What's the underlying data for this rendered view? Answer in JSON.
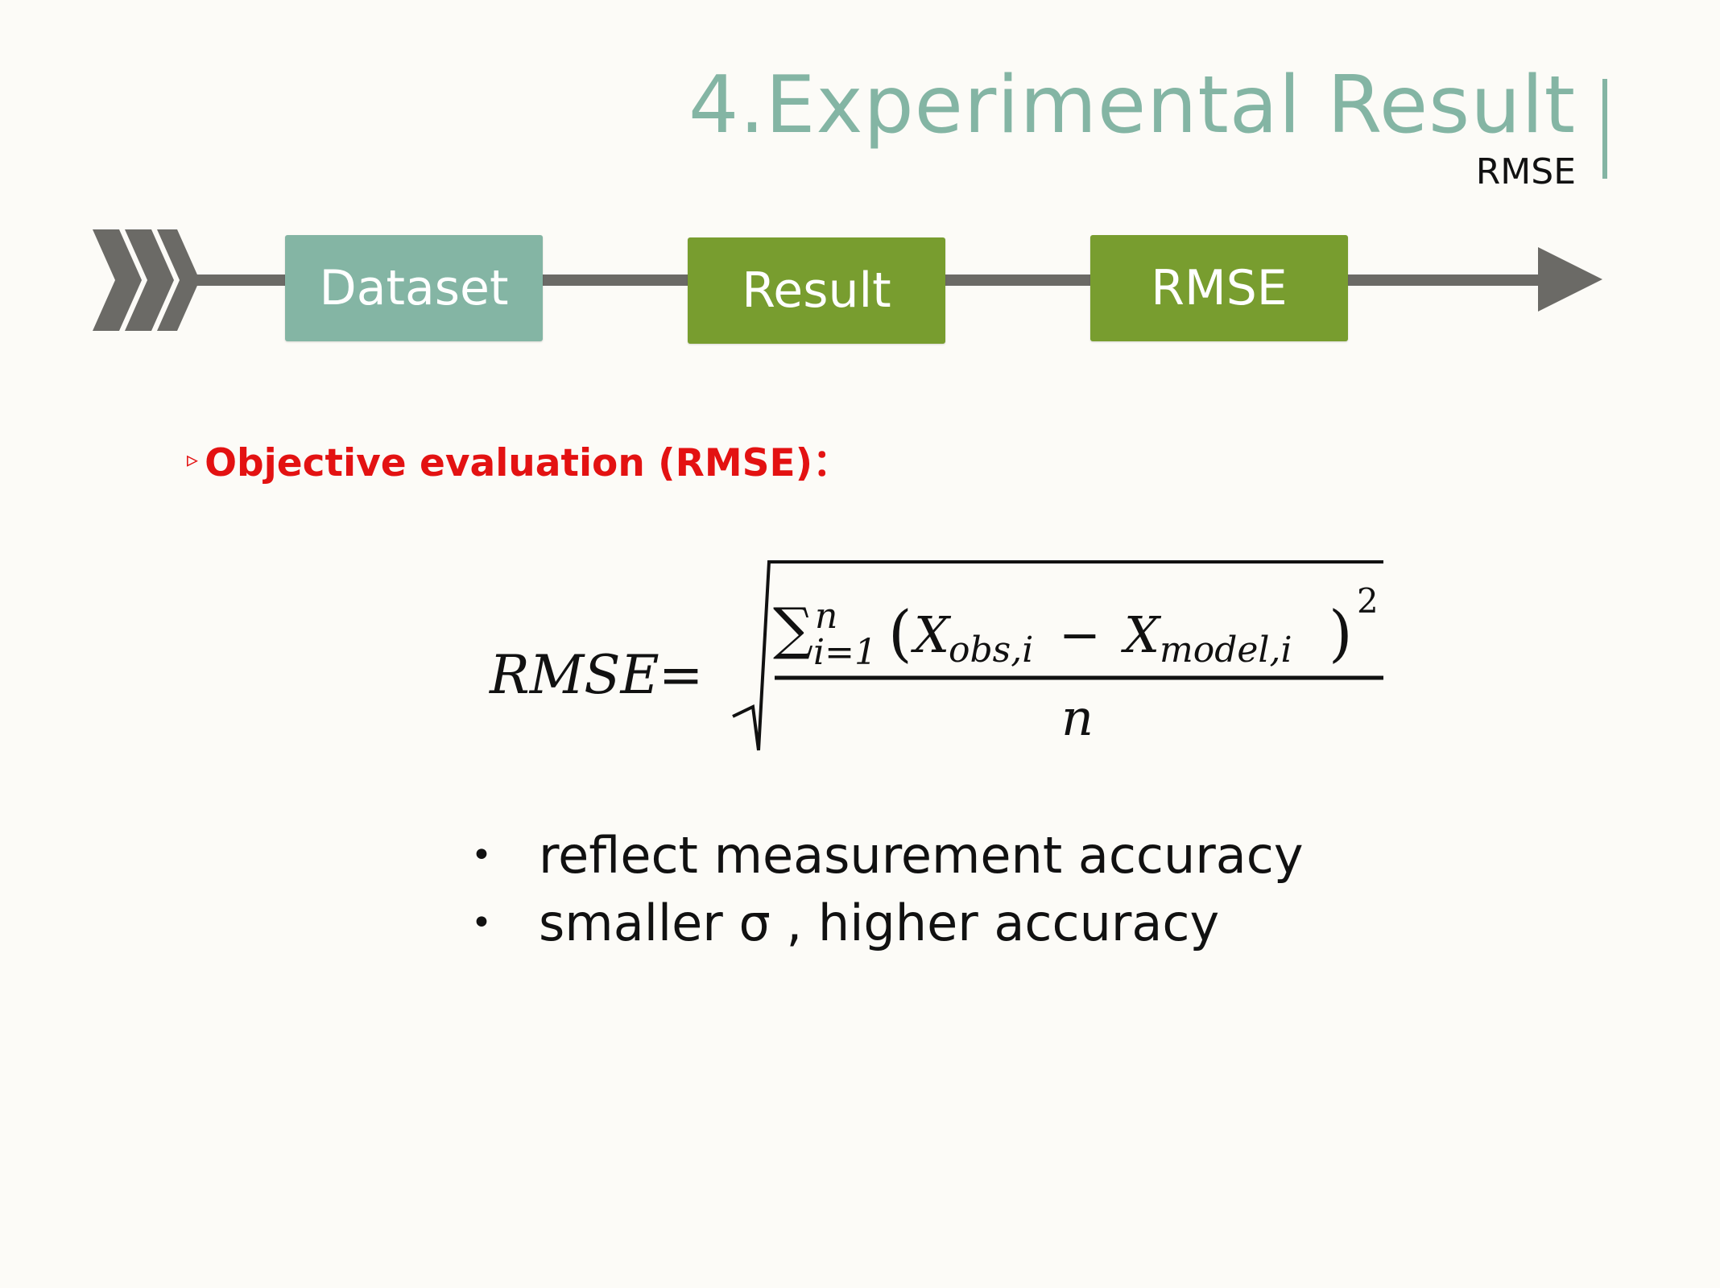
{
  "header": {
    "title": "4.Experimental Result",
    "subtitle": "RMSE"
  },
  "flow": {
    "steps": [
      "Dataset",
      "Result",
      "RMSE"
    ]
  },
  "section": {
    "marker": "▹",
    "heading": "Objective evaluation (RMSE)："
  },
  "formula": {
    "lhs": "RMSE",
    "equals": "=",
    "sum": "∑",
    "upper": "n",
    "lower": "i=1",
    "open_paren": "(",
    "x1": "X",
    "x1_sub": "obs,i",
    "minus": "−",
    "x2": "X",
    "x2_sub": "model,i",
    "close_paren": ")",
    "exponent": "2",
    "denominator": "n"
  },
  "bullets": [
    "reflect measurement accuracy",
    "smaller σ , higher accuracy"
  ],
  "colors": {
    "teal": "#84b5a4",
    "green": "#789d2f",
    "arrow_gray": "#6b6a66",
    "heading_red": "#e31212"
  }
}
